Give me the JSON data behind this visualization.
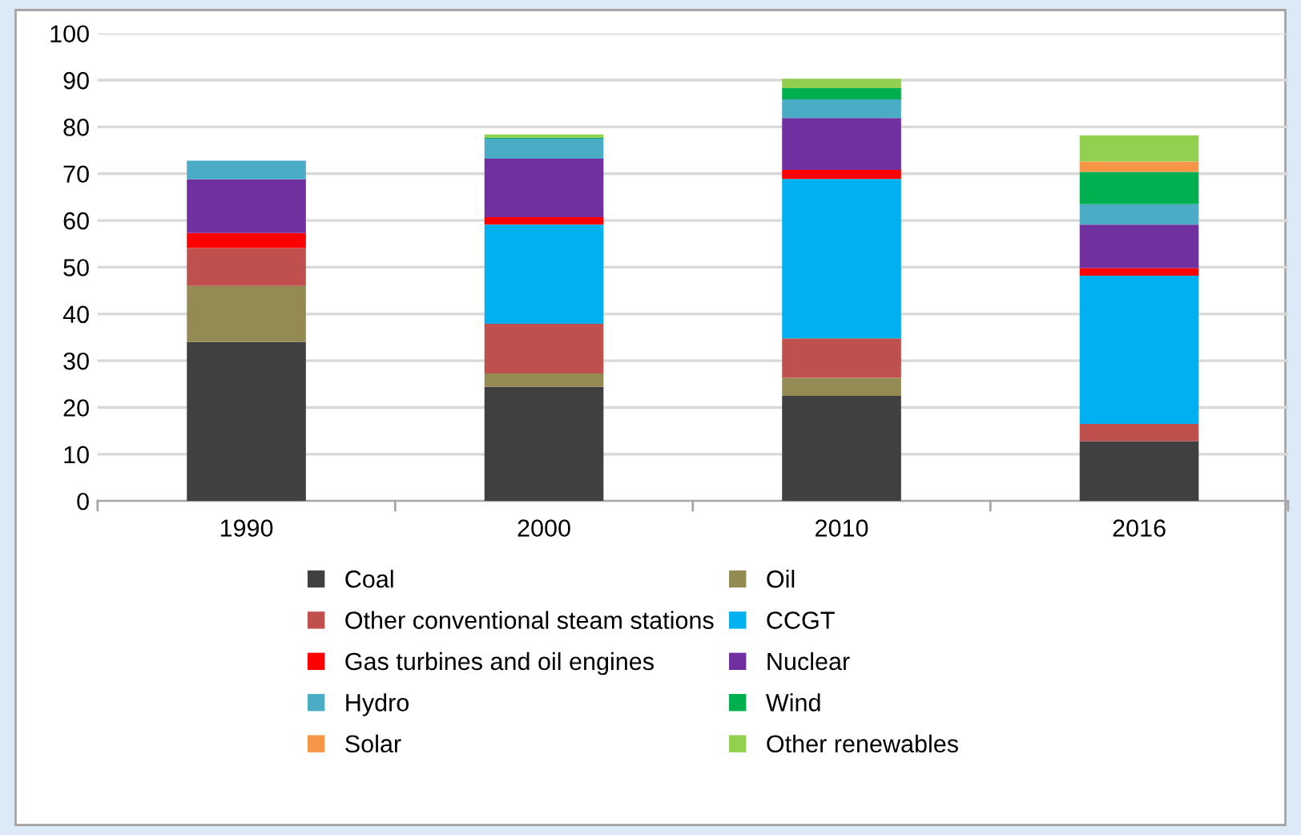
{
  "chart_data": {
    "type": "bar",
    "stacked": true,
    "categories": [
      "1990",
      "2000",
      "2010",
      "2016"
    ],
    "ylim": [
      0,
      100
    ],
    "yticks": [
      0,
      10,
      20,
      30,
      40,
      50,
      60,
      70,
      80,
      90,
      100
    ],
    "grid": "y",
    "legend": "bottom",
    "series": [
      {
        "name": "Coal",
        "color": "#404040",
        "values": [
          34.0,
          24.4,
          22.5,
          12.8
        ]
      },
      {
        "name": "Oil",
        "color": "#948a54",
        "values": [
          12.0,
          2.9,
          3.9,
          0
        ]
      },
      {
        "name": "Other conventional steam stations",
        "color": "#c0504d",
        "values": [
          8.1,
          10.6,
          8.4,
          3.7
        ]
      },
      {
        "name": "CCGT",
        "color": "#00b0f0",
        "values": [
          0,
          21.2,
          34.1,
          31.7
        ]
      },
      {
        "name": "Gas turbines and oil engines",
        "color": "#ff0000",
        "values": [
          3.2,
          1.6,
          1.9,
          1.6
        ]
      },
      {
        "name": "Nuclear",
        "color": "#7030a0",
        "values": [
          11.5,
          12.5,
          11.1,
          9.3
        ]
      },
      {
        "name": "Hydro",
        "color": "#4bacc6",
        "values": [
          4.0,
          4.3,
          4.0,
          4.4
        ]
      },
      {
        "name": "Wind",
        "color": "#00b050",
        "values": [
          0,
          0.2,
          2.4,
          6.9
        ]
      },
      {
        "name": "Solar",
        "color": "#f79646",
        "values": [
          0,
          0,
          0,
          2.2
        ]
      },
      {
        "name": "Other renewables",
        "color": "#92d050",
        "values": [
          0,
          0.7,
          2.0,
          5.6
        ]
      }
    ]
  }
}
